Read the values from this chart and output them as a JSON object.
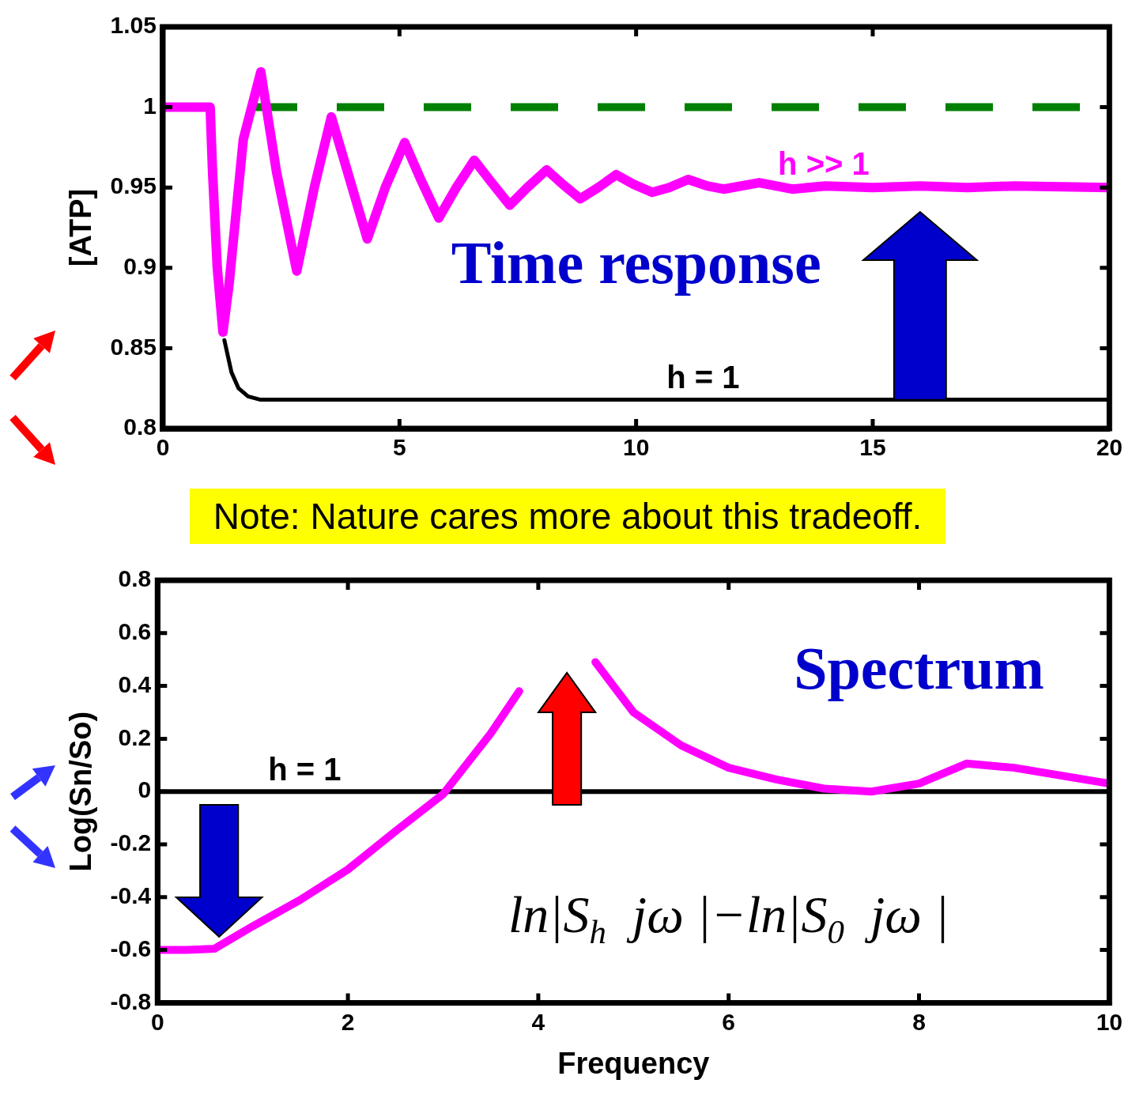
{
  "chart_data": [
    {
      "type": "line",
      "ylabel": "[ATP]",
      "xlim": [
        0,
        20
      ],
      "xticks": [
        0,
        5,
        10,
        15,
        20
      ],
      "ylim": [
        0.8,
        1.05
      ],
      "yticks": [
        0.8,
        0.85,
        0.9,
        0.95,
        1,
        1.05
      ],
      "grid": false,
      "legend": false,
      "series": [
        {
          "name": "h >> 1",
          "color": "#ff00ff",
          "x": [
            0,
            1.0,
            1.05,
            1.15,
            1.27,
            1.4,
            1.7,
            2.07,
            2.4,
            2.83,
            3.2,
            3.56,
            3.95,
            4.32,
            4.7,
            5.11,
            5.45,
            5.83,
            6.2,
            6.58,
            6.95,
            7.33,
            7.7,
            8.11,
            8.45,
            8.82,
            9.2,
            9.58,
            9.95,
            10.34,
            10.7,
            11.1,
            11.5,
            11.85,
            12.6,
            13.3,
            14,
            15,
            16,
            17,
            18,
            20
          ],
          "values": [
            1,
            1,
            0.96,
            0.9,
            0.86,
            0.89,
            0.98,
            1.022,
            0.96,
            0.898,
            0.95,
            0.994,
            0.955,
            0.918,
            0.95,
            0.978,
            0.955,
            0.931,
            0.95,
            0.967,
            0.953,
            0.939,
            0.95,
            0.961,
            0.952,
            0.943,
            0.95,
            0.958,
            0.952,
            0.947,
            0.95,
            0.955,
            0.951,
            0.949,
            0.953,
            0.949,
            0.951,
            0.95,
            0.951,
            0.95,
            0.951,
            0.95
          ]
        },
        {
          "name": "h = 1",
          "color": "#000000",
          "x": [
            1.3,
            1.45,
            1.6,
            1.8,
            2.05,
            20
          ],
          "values": [
            0.855,
            0.835,
            0.825,
            0.82,
            0.818,
            0.818
          ]
        }
      ],
      "ref_lines": [
        {
          "axis": "y",
          "value": 1,
          "color": "#008000",
          "line_style": "dashed"
        }
      ],
      "annotations": [
        "Time response"
      ]
    },
    {
      "type": "line",
      "xlabel": "Frequency",
      "ylabel": "Log(Sn/So)",
      "xlim": [
        0,
        10
      ],
      "xticks": [
        0,
        2,
        4,
        6,
        8,
        10
      ],
      "ylim": [
        -0.8,
        0.8
      ],
      "yticks": [
        -0.8,
        -0.6,
        -0.4,
        -0.2,
        0,
        0.2,
        0.4,
        0.6,
        0.8
      ],
      "grid": false,
      "legend": false,
      "series": [
        {
          "color": "#ff00ff",
          "x": [
            0,
            0.3,
            0.6,
            1,
            1.5,
            2,
            2.5,
            3,
            3.5,
            3.8,
            4.2,
            4.6,
            5,
            5.5,
            6,
            6.5,
            7,
            7.5,
            8,
            8.5,
            9,
            9.5,
            10
          ],
          "values": [
            -0.6,
            -0.6,
            -0.595,
            -0.51,
            -0.41,
            -0.295,
            -0.15,
            -0.01,
            0.22,
            0.38,
            null,
            0.49,
            0.3,
            0.175,
            0.09,
            0.046,
            0.011,
            0,
            0.03,
            0.106,
            0.09,
            0.06,
            0.03
          ]
        },
        {
          "name": "h = 1",
          "color": "#000000",
          "x": [
            0,
            10
          ],
          "values": [
            0,
            0
          ]
        }
      ],
      "annotations": [
        "Spectrum",
        "ln|S$_{h}$  jω |−ln|S$_{0}$  jω |",
        "Note: Nature cares more about this tradeoff."
      ]
    }
  ]
}
